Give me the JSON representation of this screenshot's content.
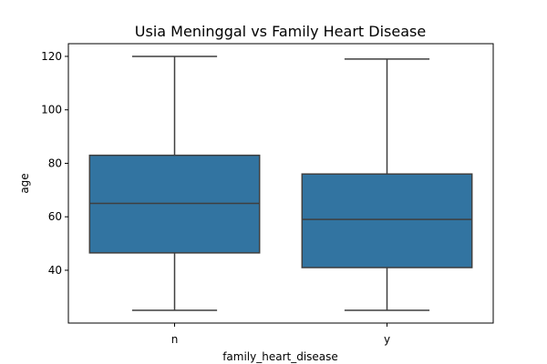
{
  "chart_data": {
    "type": "box",
    "title": "Usia Meninggal vs Family Heart Disease",
    "xlabel": "family_heart_disease",
    "ylabel": "age",
    "ylim": [
      20.25,
      124.75
    ],
    "yticks": [
      40,
      60,
      80,
      100,
      120
    ],
    "grid": false,
    "color": "#3274a1",
    "line_color": "#3f3f3f",
    "categories": [
      "n",
      "y"
    ],
    "boxes": [
      {
        "category": "n",
        "whisker_low": 25,
        "q1": 46.5,
        "median": 65,
        "q3": 83,
        "whisker_high": 120
      },
      {
        "category": "y",
        "whisker_low": 25,
        "q1": 41,
        "median": 59,
        "q3": 76,
        "whisker_high": 119
      }
    ]
  }
}
